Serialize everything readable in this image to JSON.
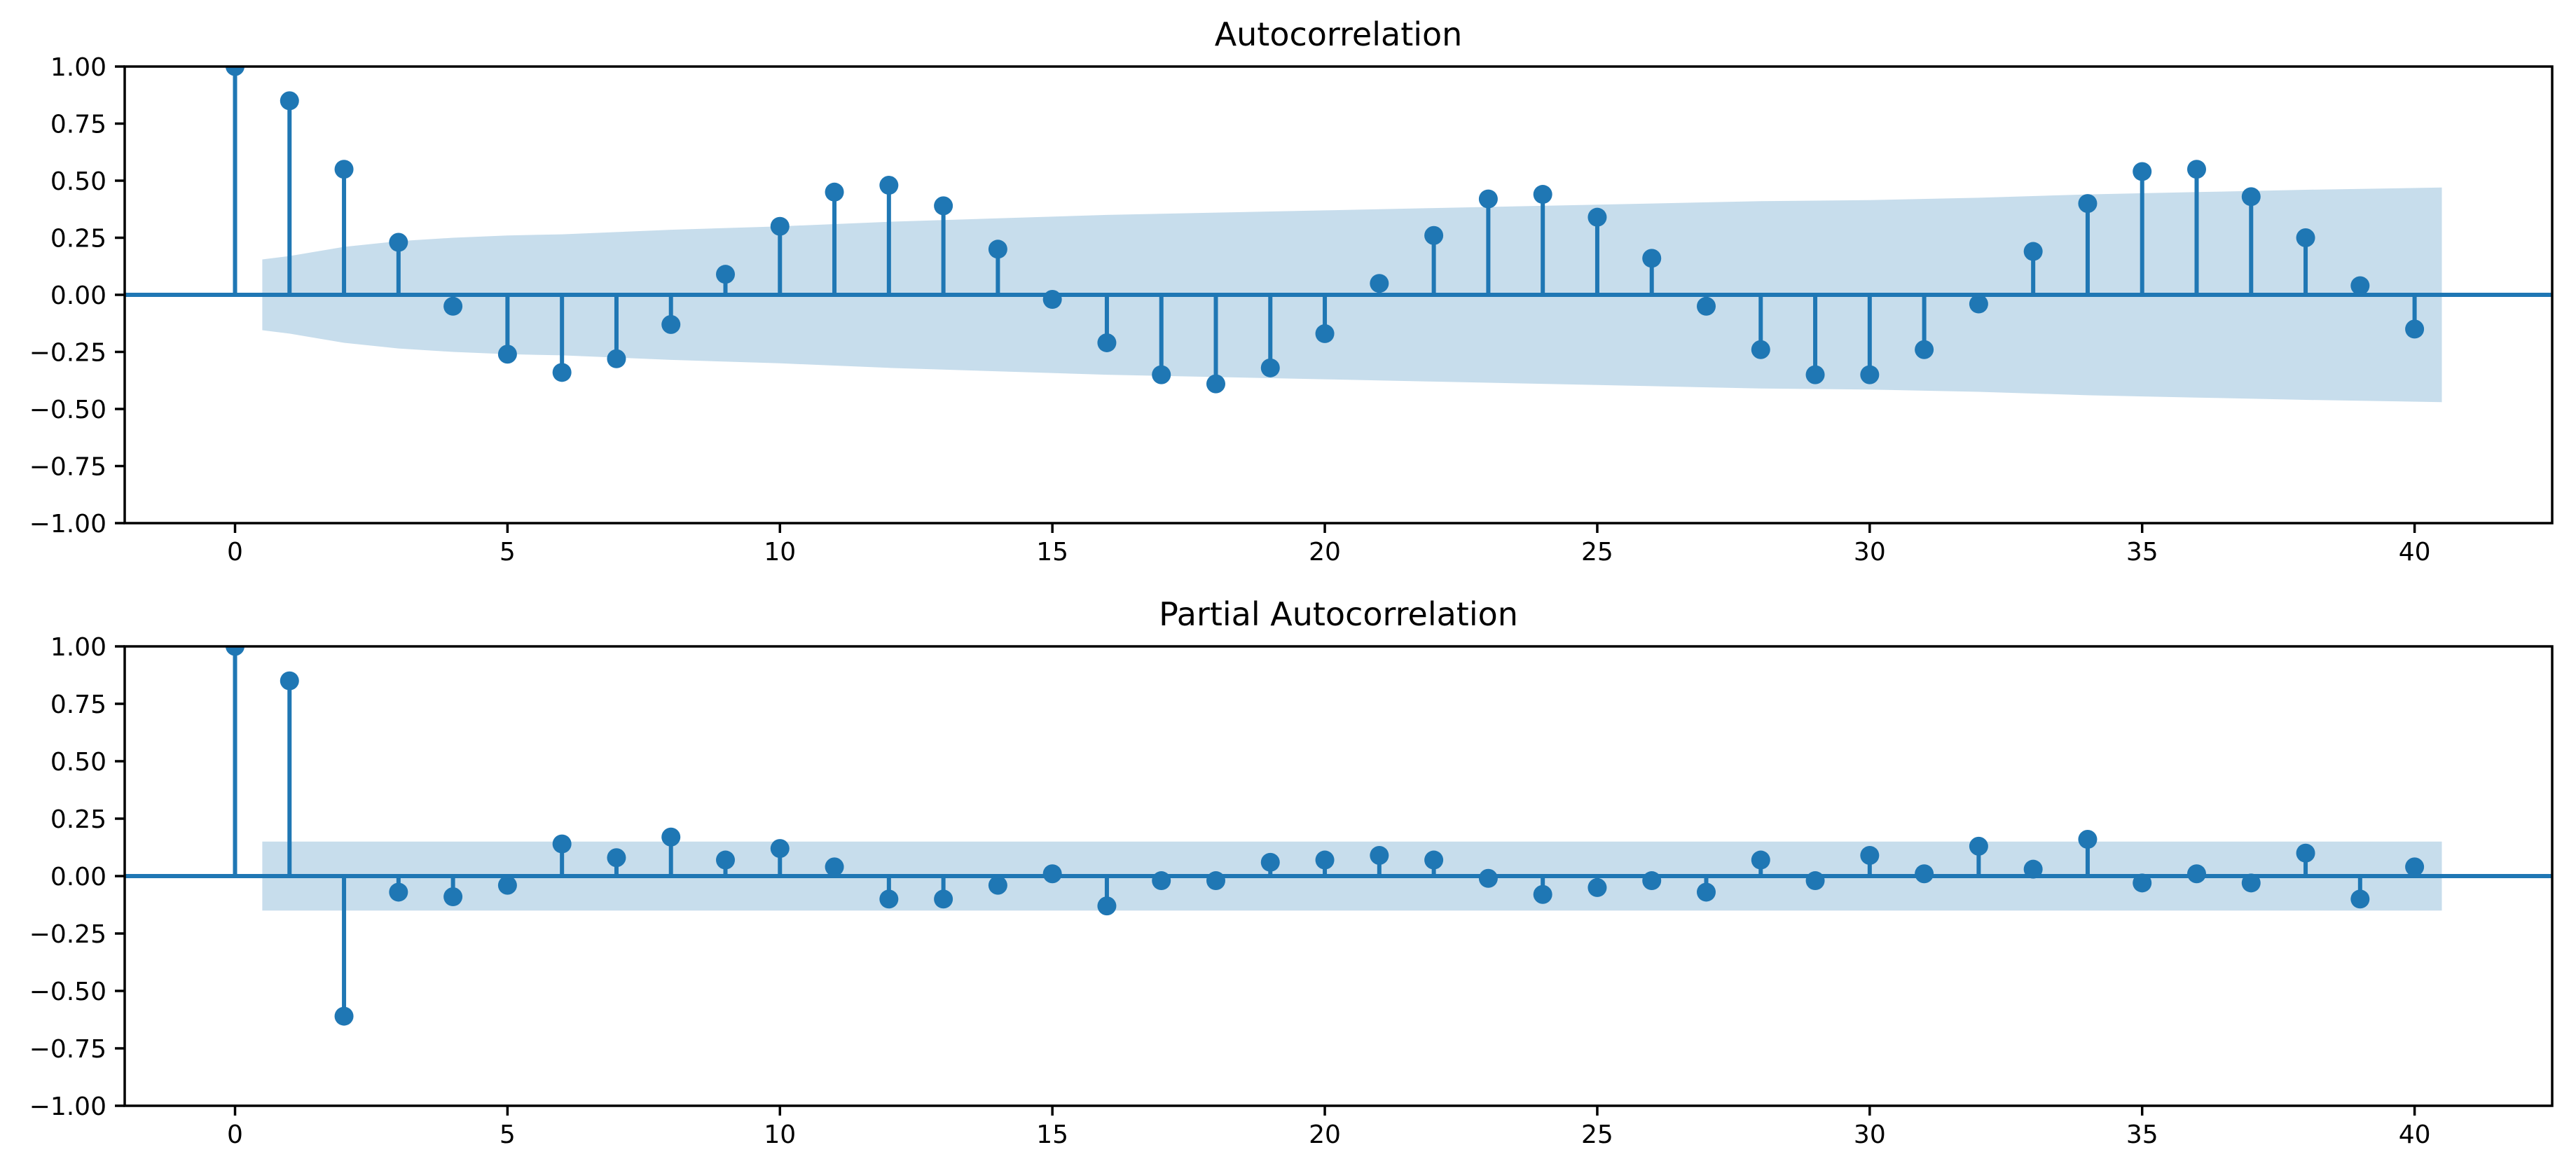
{
  "figure": {
    "background": "#ffffff"
  },
  "style": {
    "accent": "#1f77b4",
    "band_fill": "rgba(31,119,180,0.25)",
    "spine_color": "#000000",
    "text_color": "#000000"
  },
  "chart_data": [
    {
      "type": "stem",
      "title": "Autocorrelation",
      "xlabel": "",
      "ylabel": "",
      "grid": false,
      "legend": null,
      "xlim": [
        -2.025,
        42.525
      ],
      "ylim": [
        -1.0,
        1.0
      ],
      "xticks": [
        0,
        5,
        10,
        15,
        20,
        25,
        30,
        35,
        40
      ],
      "xtick_labels": [
        "0",
        "5",
        "10",
        "15",
        "20",
        "25",
        "30",
        "35",
        "40"
      ],
      "yticks": [
        1.0,
        0.75,
        0.5,
        0.25,
        0.0,
        -0.25,
        -0.5,
        -0.75,
        -1.0
      ],
      "ytick_labels": [
        "1.00",
        "0.75",
        "0.50",
        "0.25",
        "0.00",
        "−0.25",
        "−0.50",
        "−0.75",
        "−1.00"
      ],
      "x": [
        0,
        1,
        2,
        3,
        4,
        5,
        6,
        7,
        8,
        9,
        10,
        11,
        12,
        13,
        14,
        15,
        16,
        17,
        18,
        19,
        20,
        21,
        22,
        23,
        24,
        25,
        26,
        27,
        28,
        29,
        30,
        31,
        32,
        33,
        34,
        35,
        36,
        37,
        38,
        39,
        40
      ],
      "values": [
        1.0,
        0.85,
        0.55,
        0.23,
        -0.05,
        -0.26,
        -0.34,
        -0.28,
        -0.13,
        0.09,
        0.3,
        0.45,
        0.48,
        0.39,
        0.2,
        -0.02,
        -0.21,
        -0.35,
        -0.39,
        -0.32,
        -0.17,
        0.05,
        0.26,
        0.42,
        0.44,
        0.34,
        0.16,
        -0.05,
        -0.24,
        -0.35,
        -0.35,
        -0.24,
        -0.04,
        0.19,
        0.4,
        0.54,
        0.55,
        0.43,
        0.25,
        0.04,
        -0.15
      ],
      "confidence_band": {
        "x": [
          0.5,
          1,
          2,
          3,
          4,
          5,
          6,
          7,
          8,
          10,
          12,
          14,
          16,
          18,
          20,
          22,
          24,
          26,
          28,
          30,
          32,
          34,
          36,
          38,
          40.5
        ],
        "halfwidth": [
          0.155,
          0.17,
          0.21,
          0.235,
          0.25,
          0.26,
          0.265,
          0.275,
          0.285,
          0.3,
          0.32,
          0.335,
          0.35,
          0.36,
          0.37,
          0.38,
          0.39,
          0.4,
          0.41,
          0.415,
          0.425,
          0.44,
          0.45,
          0.46,
          0.47
        ]
      }
    },
    {
      "type": "stem",
      "title": "Partial Autocorrelation",
      "xlabel": "",
      "ylabel": "",
      "grid": false,
      "legend": null,
      "xlim": [
        -2.025,
        42.525
      ],
      "ylim": [
        -1.0,
        1.0
      ],
      "xticks": [
        0,
        5,
        10,
        15,
        20,
        25,
        30,
        35,
        40
      ],
      "xtick_labels": [
        "0",
        "5",
        "10",
        "15",
        "20",
        "25",
        "30",
        "35",
        "40"
      ],
      "yticks": [
        1.0,
        0.75,
        0.5,
        0.25,
        0.0,
        -0.25,
        -0.5,
        -0.75,
        -1.0
      ],
      "ytick_labels": [
        "1.00",
        "0.75",
        "0.50",
        "0.25",
        "0.00",
        "−0.25",
        "−0.50",
        "−0.75",
        "−1.00"
      ],
      "x": [
        0,
        1,
        2,
        3,
        4,
        5,
        6,
        7,
        8,
        9,
        10,
        11,
        12,
        13,
        14,
        15,
        16,
        17,
        18,
        19,
        20,
        21,
        22,
        23,
        24,
        25,
        26,
        27,
        28,
        29,
        30,
        31,
        32,
        33,
        34,
        35,
        36,
        37,
        38,
        39,
        40
      ],
      "values": [
        1.0,
        0.85,
        -0.61,
        -0.07,
        -0.09,
        -0.04,
        0.14,
        0.08,
        0.17,
        0.07,
        0.12,
        0.04,
        -0.1,
        -0.1,
        -0.04,
        0.01,
        -0.13,
        -0.02,
        -0.02,
        0.06,
        0.07,
        0.09,
        0.07,
        -0.01,
        -0.08,
        -0.05,
        -0.02,
        -0.07,
        0.07,
        -0.02,
        0.09,
        0.01,
        0.13,
        0.03,
        0.16,
        -0.03,
        0.01,
        -0.03,
        0.1,
        -0.1,
        0.04
      ],
      "confidence_band": {
        "x": [
          0.5,
          40.5
        ],
        "halfwidth": [
          0.15,
          0.15
        ]
      }
    }
  ]
}
